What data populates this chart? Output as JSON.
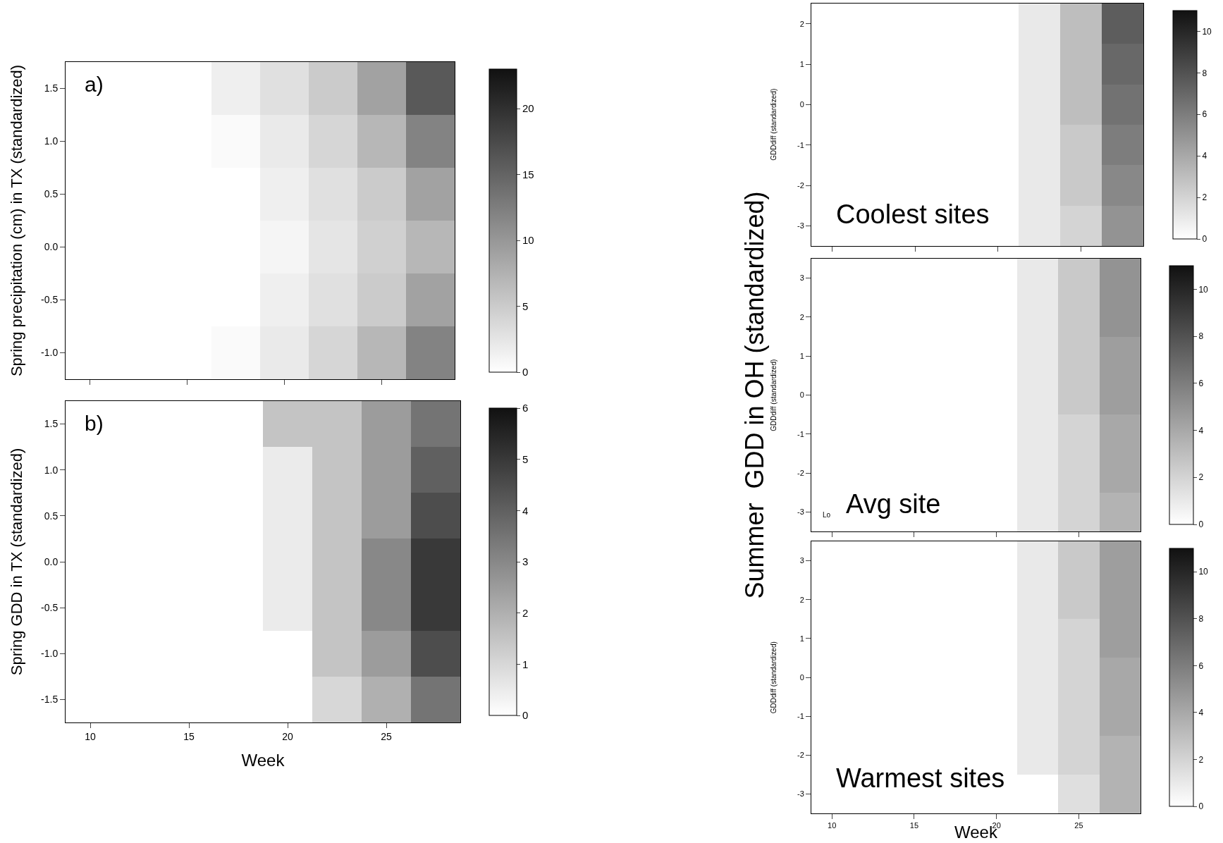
{
  "chart_data": [
    {
      "type": "heatmap",
      "ylabel": "Spring precipitation (cm) in TX (standardized)",
      "annotations": [
        "a)"
      ],
      "tick_labels": "y",
      "categories": [
        "10",
        null,
        "15",
        null,
        "20",
        null,
        "25",
        null
      ],
      "y_categories": [
        "1.5",
        "1.0",
        "0.5",
        "0.0",
        "-0.5",
        "-1.0"
      ],
      "cells": [
        [
          0,
          0,
          0,
          1.5,
          3,
          5,
          9,
          16
        ],
        [
          0,
          0,
          0,
          0.5,
          2,
          4,
          7,
          12
        ],
        [
          0,
          0,
          0,
          0,
          1.5,
          3,
          5,
          9
        ],
        [
          0,
          0,
          0,
          0,
          1,
          2.5,
          4.5,
          7
        ],
        [
          0,
          0,
          0,
          0,
          1.5,
          3,
          5,
          9
        ],
        [
          0,
          0,
          0,
          0.5,
          2,
          4,
          7,
          12
        ]
      ],
      "clim": [
        0,
        23
      ],
      "cticks": [
        0,
        5,
        10,
        15,
        20
      ]
    },
    {
      "type": "heatmap",
      "xlabel": "Week",
      "ylabel": "Spring GDD in TX (standardized)",
      "annotations": [
        "b)"
      ],
      "categories": [
        "10",
        null,
        "15",
        null,
        "20",
        null,
        "25",
        null
      ],
      "y_categories": [
        "1.5",
        "1.0",
        "0.5",
        "0.0",
        "-0.5",
        "-1.0",
        "-1.5"
      ],
      "cells": [
        [
          0,
          0,
          0,
          0,
          1.5,
          1.5,
          2.5,
          3.5
        ],
        [
          0,
          0,
          0,
          0,
          0.5,
          1.5,
          2.5,
          4
        ],
        [
          0,
          0,
          0,
          0,
          0.5,
          1.5,
          2.5,
          4.5
        ],
        [
          0,
          0,
          0,
          0,
          0.5,
          1.5,
          3,
          5
        ],
        [
          0,
          0,
          0,
          0,
          0.5,
          1.5,
          3,
          5
        ],
        [
          0,
          0,
          0,
          0,
          0,
          1.5,
          2.5,
          4.5
        ],
        [
          0,
          0,
          0,
          0,
          0,
          1,
          2,
          3.5
        ]
      ],
      "clim": [
        0,
        6
      ],
      "cticks": [
        0,
        1,
        2,
        3,
        4,
        5,
        6
      ]
    },
    {
      "type": "heatmap",
      "annotations": [
        "Coolest sites",
        "GDDdiff (standardized)"
      ],
      "tick_labels": "y",
      "categories": [
        "10",
        null,
        "15",
        null,
        "20",
        null,
        "25",
        null
      ],
      "y_categories": [
        "2",
        "1",
        "0",
        "-1",
        "-2",
        "-3"
      ],
      "cells": [
        [
          0,
          0,
          0,
          0,
          0,
          1,
          3,
          7.5
        ],
        [
          0,
          0,
          0,
          0,
          0,
          1,
          3,
          7
        ],
        [
          0,
          0,
          0,
          0,
          0,
          1,
          3,
          6.5
        ],
        [
          0,
          0,
          0,
          0,
          0,
          1,
          2.5,
          6
        ],
        [
          0,
          0,
          0,
          0,
          0,
          1,
          2.5,
          5.5
        ],
        [
          0,
          0,
          0,
          0,
          0,
          1,
          2,
          5
        ]
      ],
      "clim": [
        0,
        11
      ],
      "cticks": [
        0,
        2,
        4,
        6,
        8,
        10
      ]
    },
    {
      "type": "heatmap",
      "ylabel": "Summer  GDD in OH (standardized)",
      "annotations": [
        "Avg site",
        "Lo",
        "GDDdiff (standardized)"
      ],
      "tick_labels": "y",
      "categories": [
        "10",
        null,
        "15",
        null,
        "20",
        null,
        "25",
        null
      ],
      "y_categories": [
        "3",
        "2",
        "1",
        "0",
        "-1",
        "-2",
        "-3"
      ],
      "cells": [
        [
          0,
          0,
          0,
          0,
          0,
          1,
          2.5,
          5
        ],
        [
          0,
          0,
          0,
          0,
          0,
          1,
          2.5,
          5
        ],
        [
          0,
          0,
          0,
          0,
          0,
          1,
          2.5,
          4.5
        ],
        [
          0,
          0,
          0,
          0,
          0,
          1,
          2.5,
          4.5
        ],
        [
          0,
          0,
          0,
          0,
          0,
          1,
          2,
          4
        ],
        [
          0,
          0,
          0,
          0,
          0,
          1,
          2,
          4
        ],
        [
          0,
          0,
          0,
          0,
          0,
          1,
          2,
          3.5
        ]
      ],
      "clim": [
        0,
        11
      ],
      "cticks": [
        0,
        2,
        4,
        6,
        8,
        10
      ]
    },
    {
      "type": "heatmap",
      "xlabel": "Week",
      "annotations": [
        "Warmest sites",
        "GDDdiff (standardized)"
      ],
      "categories": [
        "10",
        null,
        "15",
        null,
        "20",
        null,
        "25",
        null
      ],
      "y_categories": [
        "3",
        "2",
        "1",
        "0",
        "-1",
        "-2",
        "-3"
      ],
      "cells": [
        [
          0,
          0,
          0,
          0,
          0,
          1,
          2.5,
          4.5
        ],
        [
          0,
          0,
          0,
          0,
          0,
          1,
          2.5,
          4.5
        ],
        [
          0,
          0,
          0,
          0,
          0,
          1,
          2,
          4.5
        ],
        [
          0,
          0,
          0,
          0,
          0,
          1,
          2,
          4
        ],
        [
          0,
          0,
          0,
          0,
          0,
          1,
          2,
          4
        ],
        [
          0,
          0,
          0,
          0,
          0,
          1,
          2,
          3.5
        ],
        [
          0,
          0,
          0,
          0,
          0,
          0,
          1.5,
          3.5
        ]
      ],
      "clim": [
        0,
        11
      ],
      "cticks": [
        0,
        2,
        4,
        6,
        8,
        10
      ]
    }
  ]
}
